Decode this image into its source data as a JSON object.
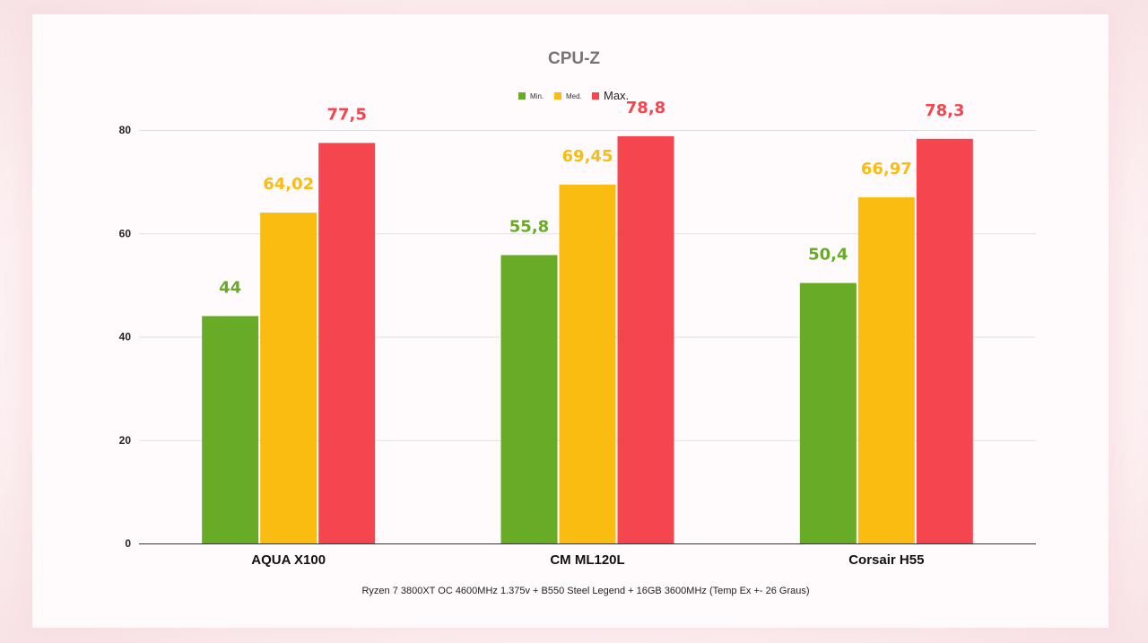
{
  "chart_data": {
    "type": "bar",
    "title": "CPU-Z",
    "subtitle": "Ryzen 7 3800XT OC 4600MHz 1.375v + B550 Steel Legend + 16GB 3600MHz (Temp Ex +- 26 Graus)",
    "categories": [
      "AQUA X100",
      "CM ML120L",
      "Corsair H55"
    ],
    "series": [
      {
        "name": "Min.",
        "values": [
          44,
          55.8,
          50.4
        ],
        "labels": [
          "44",
          "55,8",
          "50,4"
        ],
        "color": "#67ab27"
      },
      {
        "name": "Med.",
        "values": [
          64.02,
          69.45,
          66.97
        ],
        "labels": [
          "64,02",
          "69,45",
          "66,97"
        ],
        "color": "#fbbc12"
      },
      {
        "name": "Max.",
        "values": [
          77.5,
          78.8,
          78.3
        ],
        "labels": [
          "77,5",
          "78,8",
          "78,3"
        ],
        "color": "#f5464f"
      }
    ],
    "ylim": [
      0,
      80
    ],
    "yticks": [
      0,
      20,
      40,
      60,
      80
    ],
    "grid": true,
    "legend": "top-center"
  }
}
